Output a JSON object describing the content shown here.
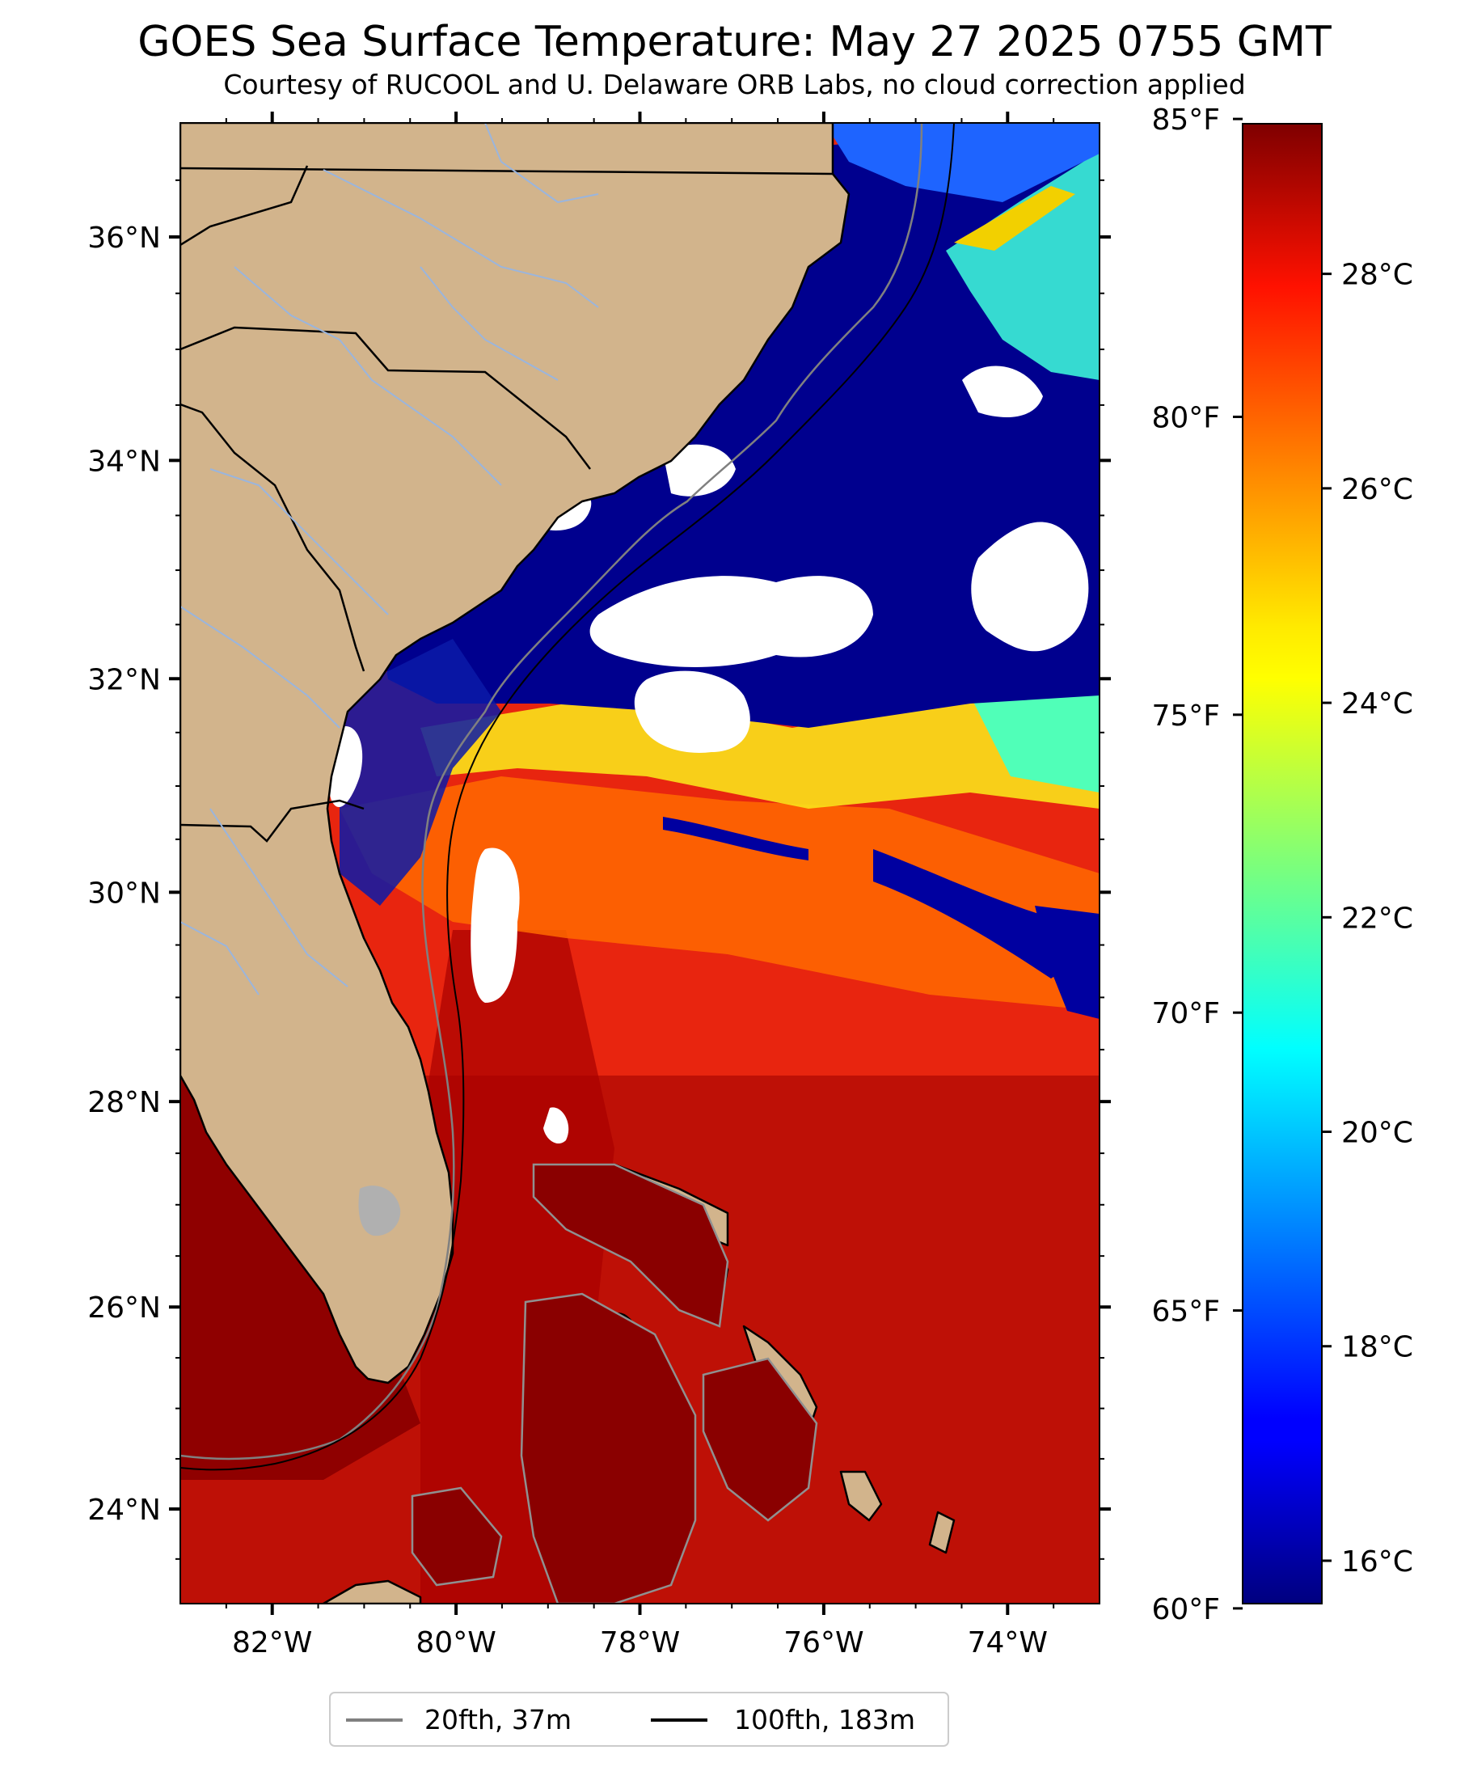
{
  "title": "GOES Sea Surface Temperature: May 27 2025 0755 GMT",
  "subtitle": "Courtesy of RUCOOL and U. Delaware ORB Labs, no cloud correction applied",
  "map": {
    "lon_range": [
      -83,
      -73
    ],
    "lat_range": [
      23.1,
      37.0
    ],
    "land_color": "#d2b48c",
    "cloud_color": "#ffffff",
    "river_color": "#9ab5dd",
    "lat_labels": [
      "36°N",
      "34°N",
      "32°N",
      "30°N",
      "28°N",
      "26°N",
      "24°N"
    ],
    "lon_labels": [
      "82°W",
      "80°W",
      "78°W",
      "76°W",
      "74°W"
    ]
  },
  "colorbar": {
    "colormap": "jet",
    "celsius_range": [
      15.6,
      29.4
    ],
    "celsius_ticks": [
      "16°C",
      "18°C",
      "20°C",
      "22°C",
      "24°C",
      "26°C",
      "28°C"
    ],
    "fahrenheit_ticks": [
      "60°F",
      "65°F",
      "70°F",
      "75°F",
      "80°F",
      "85°F"
    ]
  },
  "legend": [
    {
      "label": "20fth, 37m",
      "color": "#808080"
    },
    {
      "label": "100fth, 183m",
      "color": "#000000"
    }
  ]
}
